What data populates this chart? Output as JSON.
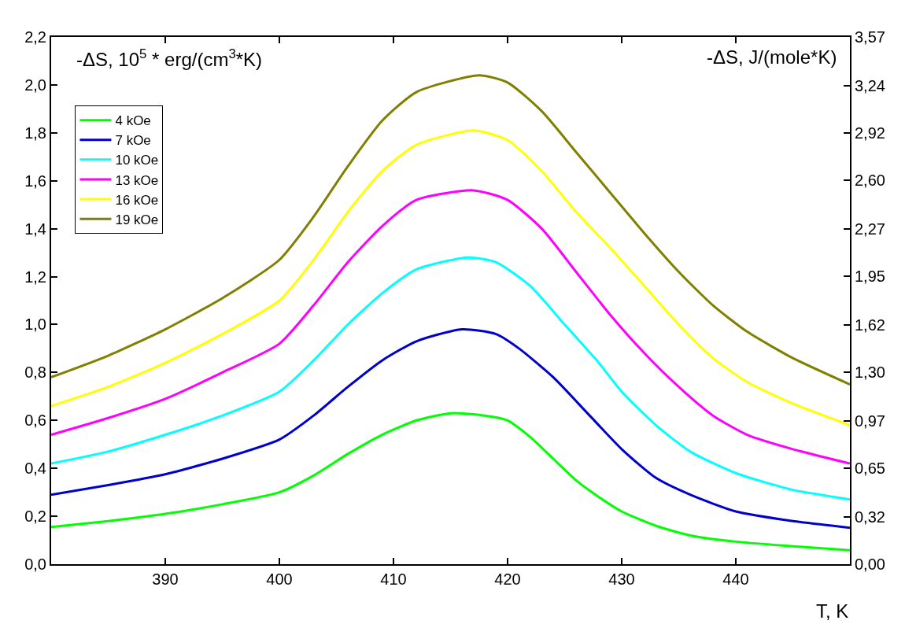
{
  "chart_data": {
    "type": "line",
    "xlabel": "T, K",
    "ylabel": "-ΔS, 10$^{5}$ * erg/(cm$^{3}$*K)",
    "y2label": "-ΔS, J/(mole*K)",
    "x": [
      380,
      385,
      390,
      395,
      400,
      403,
      406,
      409,
      412,
      415,
      418,
      420,
      422,
      424,
      426,
      428,
      430,
      433,
      436,
      440,
      445,
      450
    ],
    "series": [
      {
        "name": "4 kOe",
        "color": "#00ff00",
        "values": [
          0.155,
          0.18,
          0.21,
          0.25,
          0.3,
          0.37,
          0.46,
          0.54,
          0.6,
          0.63,
          0.62,
          0.6,
          0.53,
          0.44,
          0.35,
          0.28,
          0.22,
          0.16,
          0.12,
          0.094,
          0.075,
          0.058
        ]
      },
      {
        "name": "7 kOe",
        "color": "#0000cc",
        "x": [
          380,
          385,
          390,
          395,
          400,
          403,
          406,
          409,
          412,
          416,
          419,
          421,
          424,
          427,
          430,
          433,
          436,
          440,
          445,
          450
        ],
        "values": [
          0.29,
          0.33,
          0.375,
          0.44,
          0.52,
          0.62,
          0.74,
          0.85,
          0.93,
          0.98,
          0.96,
          0.9,
          0.78,
          0.63,
          0.48,
          0.36,
          0.29,
          0.22,
          0.18,
          0.152
        ]
      },
      {
        "name": "10 kOe",
        "color": "#00ffff",
        "x": [
          380,
          385,
          390,
          395,
          400,
          403,
          406,
          409,
          412,
          416.5,
          419,
          422,
          425,
          428,
          430,
          433,
          436,
          440,
          445,
          450
        ],
        "values": [
          0.42,
          0.47,
          0.54,
          0.62,
          0.72,
          0.85,
          1.0,
          1.13,
          1.23,
          1.28,
          1.26,
          1.16,
          1.0,
          0.84,
          0.72,
          0.58,
          0.47,
          0.38,
          0.31,
          0.27
        ]
      },
      {
        "name": "13 kOe",
        "color": "#ff00ff",
        "x": [
          380,
          385,
          390,
          395,
          400,
          403,
          406,
          409,
          412,
          417,
          420,
          423,
          426,
          429,
          432,
          435,
          438,
          441,
          445,
          450
        ],
        "values": [
          0.54,
          0.61,
          0.69,
          0.8,
          0.92,
          1.08,
          1.26,
          1.41,
          1.52,
          1.56,
          1.52,
          1.4,
          1.22,
          1.04,
          0.88,
          0.74,
          0.62,
          0.54,
          0.48,
          0.42
        ]
      },
      {
        "name": "16 kOe",
        "color": "#ffff00",
        "x": [
          380,
          385,
          390,
          395,
          400,
          403,
          406,
          409,
          412,
          417,
          420,
          423,
          426,
          429,
          432,
          435,
          438,
          441,
          445,
          450
        ],
        "values": [
          0.66,
          0.74,
          0.84,
          0.96,
          1.1,
          1.27,
          1.47,
          1.64,
          1.75,
          1.81,
          1.77,
          1.64,
          1.47,
          1.32,
          1.16,
          1.0,
          0.86,
          0.76,
          0.67,
          0.58
        ]
      },
      {
        "name": "19 kOe",
        "color": "#808000",
        "x": [
          380,
          385,
          390,
          395,
          400,
          403,
          406,
          409,
          412,
          417.5,
          420,
          423,
          426,
          429,
          432,
          435,
          438,
          441,
          445,
          450
        ],
        "values": [
          0.78,
          0.87,
          0.98,
          1.11,
          1.27,
          1.45,
          1.66,
          1.85,
          1.97,
          2.04,
          2.01,
          1.89,
          1.72,
          1.55,
          1.38,
          1.22,
          1.08,
          0.97,
          0.86,
          0.75
        ]
      }
    ],
    "xlim": [
      380,
      450
    ],
    "xticks": [
      390,
      400,
      410,
      420,
      430,
      440
    ],
    "ylim": [
      0,
      2.2
    ],
    "yticks": [
      {
        "value": 0,
        "label": "0,0"
      },
      {
        "value": 0.2,
        "label": "0,2"
      },
      {
        "value": 0.4,
        "label": "0,4"
      },
      {
        "value": 0.6,
        "label": "0,6"
      },
      {
        "value": 0.8,
        "label": "0,8"
      },
      {
        "value": 1.0,
        "label": "1,0"
      },
      {
        "value": 1.2,
        "label": "1,2"
      },
      {
        "value": 1.4,
        "label": "1,4"
      },
      {
        "value": 1.6,
        "label": "1,6"
      },
      {
        "value": 1.8,
        "label": "1,8"
      },
      {
        "value": 2.0,
        "label": "2,0"
      },
      {
        "value": 2.2,
        "label": "2,2"
      }
    ],
    "y2lim": [
      0,
      3.57
    ],
    "y2ticks": [
      {
        "value": 0,
        "label": "0,00"
      },
      {
        "value": 0.32,
        "label": "0,32"
      },
      {
        "value": 0.65,
        "label": "0,65"
      },
      {
        "value": 0.97,
        "label": "0,97"
      },
      {
        "value": 1.3,
        "label": "1,30"
      },
      {
        "value": 1.62,
        "label": "1,62"
      },
      {
        "value": 1.95,
        "label": "1,95"
      },
      {
        "value": 2.27,
        "label": "2,27"
      },
      {
        "value": 2.6,
        "label": "2,60"
      },
      {
        "value": 2.92,
        "label": "2,92"
      },
      {
        "value": 3.24,
        "label": "3,24"
      },
      {
        "value": 3.57,
        "label": "3,57"
      }
    ],
    "legend": "top left",
    "line_style": "solid",
    "marker": "none"
  }
}
